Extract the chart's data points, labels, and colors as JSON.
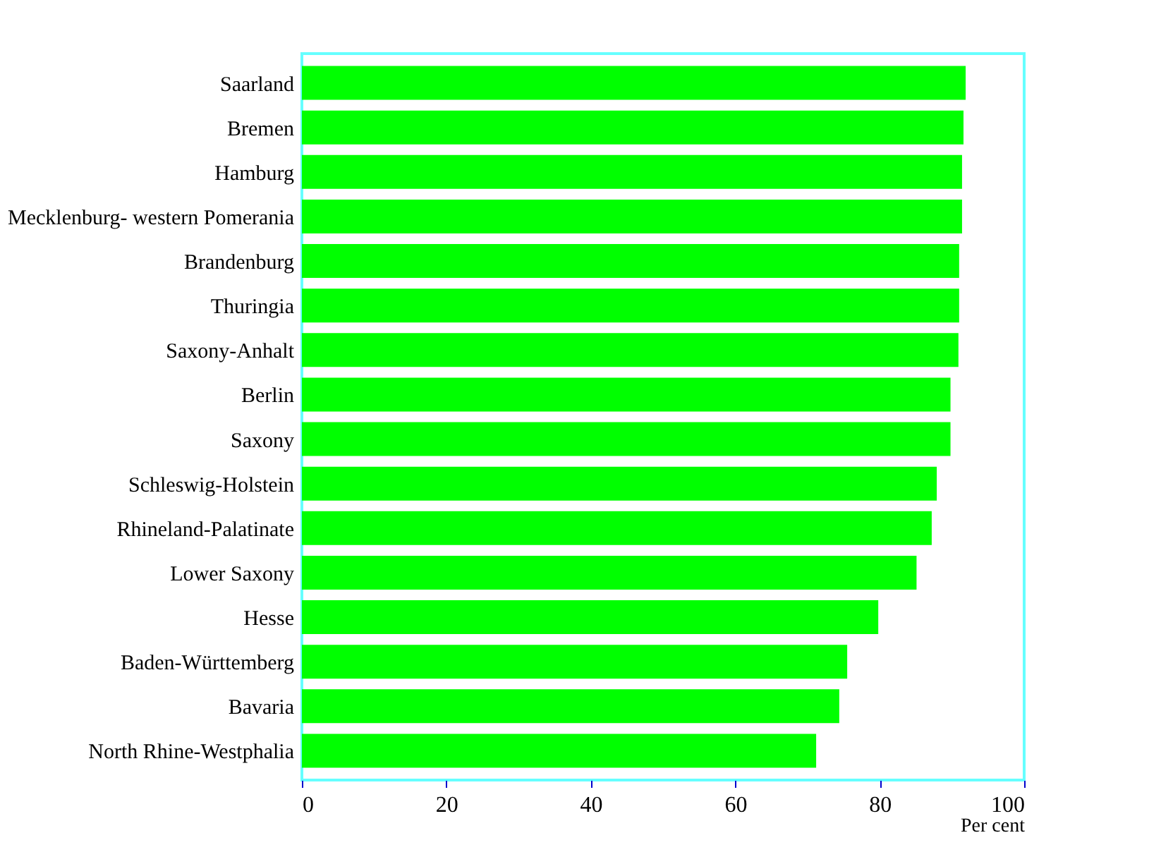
{
  "chart_data": {
    "type": "bar",
    "orientation": "horizontal",
    "xlabel": "Per cent",
    "categories": [
      "Saarland",
      "Bremen",
      "Hamburg",
      "Mecklenburg- western Pomerania",
      "Brandenburg",
      "Thuringia",
      "Saxony-Anhalt",
      "Berlin",
      "Saxony",
      "Schleswig-Holstein",
      "Rhineland-Palatinate",
      "Lower Saxony",
      "Hesse",
      "Baden-Württemberg",
      "Bavaria",
      "North Rhine-Westphalia"
    ],
    "values": [
      91.9,
      91.6,
      91.4,
      91.4,
      91.0,
      91.0,
      90.9,
      89.8,
      89.8,
      87.9,
      87.2,
      85.1,
      79.8,
      75.5,
      74.4,
      71.2
    ],
    "color": "#00ff00",
    "xlim": [
      0,
      100
    ],
    "xticks": [
      0,
      20,
      40,
      60,
      80,
      100
    ],
    "grid": false
  }
}
